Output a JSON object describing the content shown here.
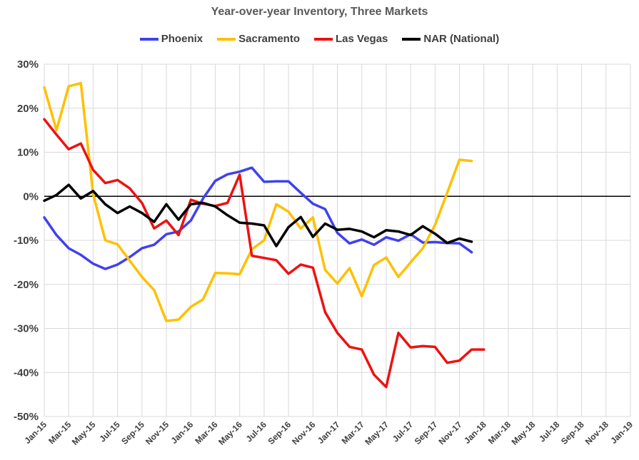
{
  "chart_data": {
    "type": "line",
    "title": "Year-over-year Inventory, Three Markets",
    "xlabel": "",
    "ylabel": "",
    "ylim": [
      -50,
      30
    ],
    "y_ticks": [
      30,
      20,
      10,
      0,
      -10,
      -20,
      -30,
      -40,
      -50
    ],
    "y_tick_labels": [
      "30%",
      "20%",
      "10%",
      "0%",
      "-10%",
      "-20%",
      "-30%",
      "-40%",
      "-50%"
    ],
    "x_start": "Jan-15",
    "x_months": 49,
    "x_tick_labels": [
      "Jan-15",
      "Mar-15",
      "May-15",
      "Jul-15",
      "Sep-15",
      "Nov-15",
      "Jan-16",
      "Mar-16",
      "May-16",
      "Jul-16",
      "Sep-16",
      "Nov-16",
      "Jan-17",
      "Mar-17",
      "May-17",
      "Jul-17",
      "Sep-17",
      "Nov-17",
      "Jan-18",
      "Mar-18",
      "May-18",
      "Jul-18",
      "Sep-18",
      "Nov-18",
      "Jan-19"
    ],
    "x_tick_indices": [
      0,
      2,
      4,
      6,
      8,
      10,
      12,
      14,
      16,
      18,
      20,
      22,
      24,
      26,
      28,
      30,
      32,
      34,
      36,
      38,
      40,
      42,
      44,
      46,
      48
    ],
    "series": [
      {
        "name": "Phoenix",
        "color": "#4040F0",
        "x": [
          0,
          1,
          2,
          3,
          4,
          5,
          6,
          7,
          8,
          9,
          10,
          11,
          12,
          13,
          14,
          15,
          16,
          17,
          18,
          19,
          20,
          21,
          22,
          23,
          24,
          25,
          26,
          27,
          28,
          29,
          30,
          31,
          32,
          33,
          34,
          35
        ],
        "values": [
          -4.8,
          -8.8,
          -11.8,
          -13.3,
          -15.3,
          -16.5,
          -15.5,
          -13.8,
          -11.8,
          -11.0,
          -8.6,
          -8.0,
          -5.5,
          -0.5,
          3.5,
          5.0,
          5.6,
          6.5,
          3.3,
          3.4,
          3.4,
          0.8,
          -1.7,
          -2.9,
          -8.3,
          -10.7,
          -9.8,
          -11.0,
          -9.3,
          -10.1,
          -8.6,
          -10.5,
          -10.4,
          -10.6,
          -10.7,
          -12.7
        ]
      },
      {
        "name": "Sacramento",
        "color": "#FFC000",
        "x": [
          0,
          1,
          2,
          3,
          4,
          5,
          6,
          7,
          8,
          9,
          10,
          11,
          12,
          13,
          14,
          15,
          16,
          17,
          18,
          19,
          20,
          21,
          22,
          23,
          24,
          25,
          26,
          27,
          28,
          29,
          30,
          31,
          32,
          33,
          34,
          35
        ],
        "values": [
          24.7,
          15.0,
          25.0,
          25.7,
          0.5,
          -10.0,
          -10.9,
          -14.6,
          -18.3,
          -21.3,
          -28.3,
          -28.0,
          -25.1,
          -23.4,
          -17.4,
          -17.5,
          -17.7,
          -12.0,
          -10.0,
          -1.8,
          -3.5,
          -7.3,
          -4.8,
          -16.7,
          -19.8,
          -16.3,
          -22.7,
          -15.6,
          -13.9,
          -18.3,
          -15.0,
          -11.8,
          -6.5,
          0.8,
          8.3,
          8.0
        ]
      },
      {
        "name": "Las Vegas",
        "color": "#EE1111",
        "x": [
          0,
          1,
          2,
          3,
          4,
          5,
          6,
          7,
          8,
          9,
          10,
          11,
          12,
          13,
          14,
          15,
          16,
          17,
          18,
          19,
          20,
          21,
          22,
          23,
          24,
          25,
          26,
          27,
          28,
          29,
          30,
          31,
          32,
          33,
          34,
          35,
          36
        ],
        "values": [
          17.5,
          14.0,
          10.7,
          12.0,
          6.0,
          3.0,
          3.7,
          1.8,
          -1.5,
          -7.3,
          -5.5,
          -8.8,
          -0.8,
          -1.7,
          -2.2,
          -1.5,
          4.9,
          -13.5,
          -14.0,
          -14.5,
          -17.6,
          -15.5,
          -16.2,
          -26.3,
          -31.0,
          -34.2,
          -34.8,
          -40.5,
          -43.3,
          -31.0,
          -34.3,
          -34.0,
          -34.2,
          -37.8,
          -37.3,
          -34.8,
          -34.8
        ]
      },
      {
        "name": "NAR (National)",
        "color": "#000000",
        "x": [
          0,
          1,
          2,
          3,
          4,
          5,
          6,
          7,
          8,
          9,
          10,
          11,
          12,
          13,
          14,
          15,
          16,
          17,
          18,
          19,
          20,
          21,
          22,
          23,
          24,
          25,
          26,
          27,
          28,
          29,
          30,
          31,
          32,
          33,
          34,
          35
        ],
        "values": [
          -1.0,
          0.3,
          2.6,
          -0.5,
          1.2,
          -1.8,
          -3.8,
          -2.3,
          -3.8,
          -5.8,
          -1.8,
          -5.3,
          -1.8,
          -1.5,
          -2.3,
          -4.3,
          -6.0,
          -6.2,
          -6.6,
          -11.3,
          -7.0,
          -4.7,
          -9.2,
          -6.2,
          -7.6,
          -7.4,
          -8.0,
          -9.3,
          -7.7,
          -8.0,
          -8.8,
          -6.8,
          -8.5,
          -10.6,
          -9.6,
          -10.3
        ]
      }
    ]
  }
}
